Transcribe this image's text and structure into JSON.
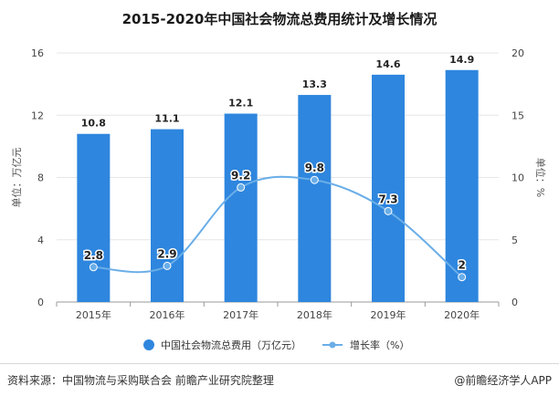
{
  "chart_data": {
    "type": "bar",
    "title": "2015-2020年中国社会物流总费用统计及增长情况",
    "categories": [
      "2015年",
      "2016年",
      "2017年",
      "2018年",
      "2019年",
      "2020年"
    ],
    "series": [
      {
        "name": "中国社会物流总费用（万亿元）",
        "type": "bar",
        "axis": "left",
        "values": [
          10.8,
          11.1,
          12.1,
          13.3,
          14.6,
          14.9
        ],
        "labels": [
          "10.8",
          "11.1",
          "12.1",
          "13.3",
          "14.6",
          "14.9"
        ]
      },
      {
        "name": "增长率（%）",
        "type": "line",
        "axis": "right",
        "values": [
          2.8,
          2.9,
          9.2,
          9.8,
          7.3,
          2
        ],
        "labels": [
          "2.8",
          "2.9",
          "9.2",
          "9.8",
          "7.3",
          "2"
        ]
      }
    ],
    "ylabel_left": "单位：万亿元",
    "ylabel_right": "单位：%",
    "ylim_left": [
      0,
      16
    ],
    "yticks_left": [
      "0",
      "4",
      "8",
      "12",
      "16"
    ],
    "ylim_right": [
      0,
      20
    ],
    "yticks_right": [
      "0",
      "5",
      "10",
      "15",
      "20"
    ],
    "legend_position": "bottom",
    "colors": {
      "bar": "#2e86de",
      "line": "#6aaee8"
    }
  },
  "footer": {
    "source": "资料来源：中国物流与采购联合会 前瞻产业研究院整理",
    "brand": "@前瞻经济学人APP"
  }
}
